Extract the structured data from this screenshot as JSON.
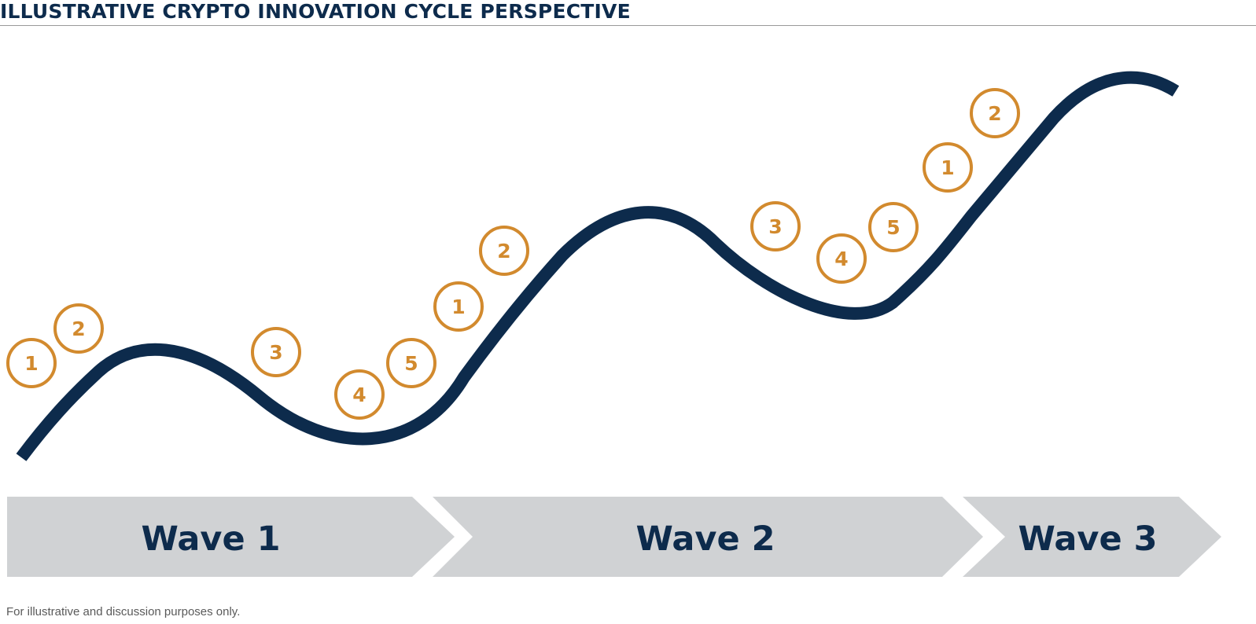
{
  "title": "ILLUSTRATIVE CRYPTO INNOVATION CYCLE PERSPECTIVE",
  "footnote": "For illustrative and discussion purposes only.",
  "colors": {
    "curve": "#0d2b4c",
    "marker": "#d28a2e",
    "chevron": "#d0d2d4",
    "label": "#0d2b4c"
  },
  "markers": [
    "1",
    "2",
    "3",
    "4",
    "5",
    "1",
    "2",
    "3",
    "4",
    "5",
    "1",
    "2"
  ],
  "waves": [
    "Wave 1",
    "Wave 2",
    "Wave 3"
  ]
}
